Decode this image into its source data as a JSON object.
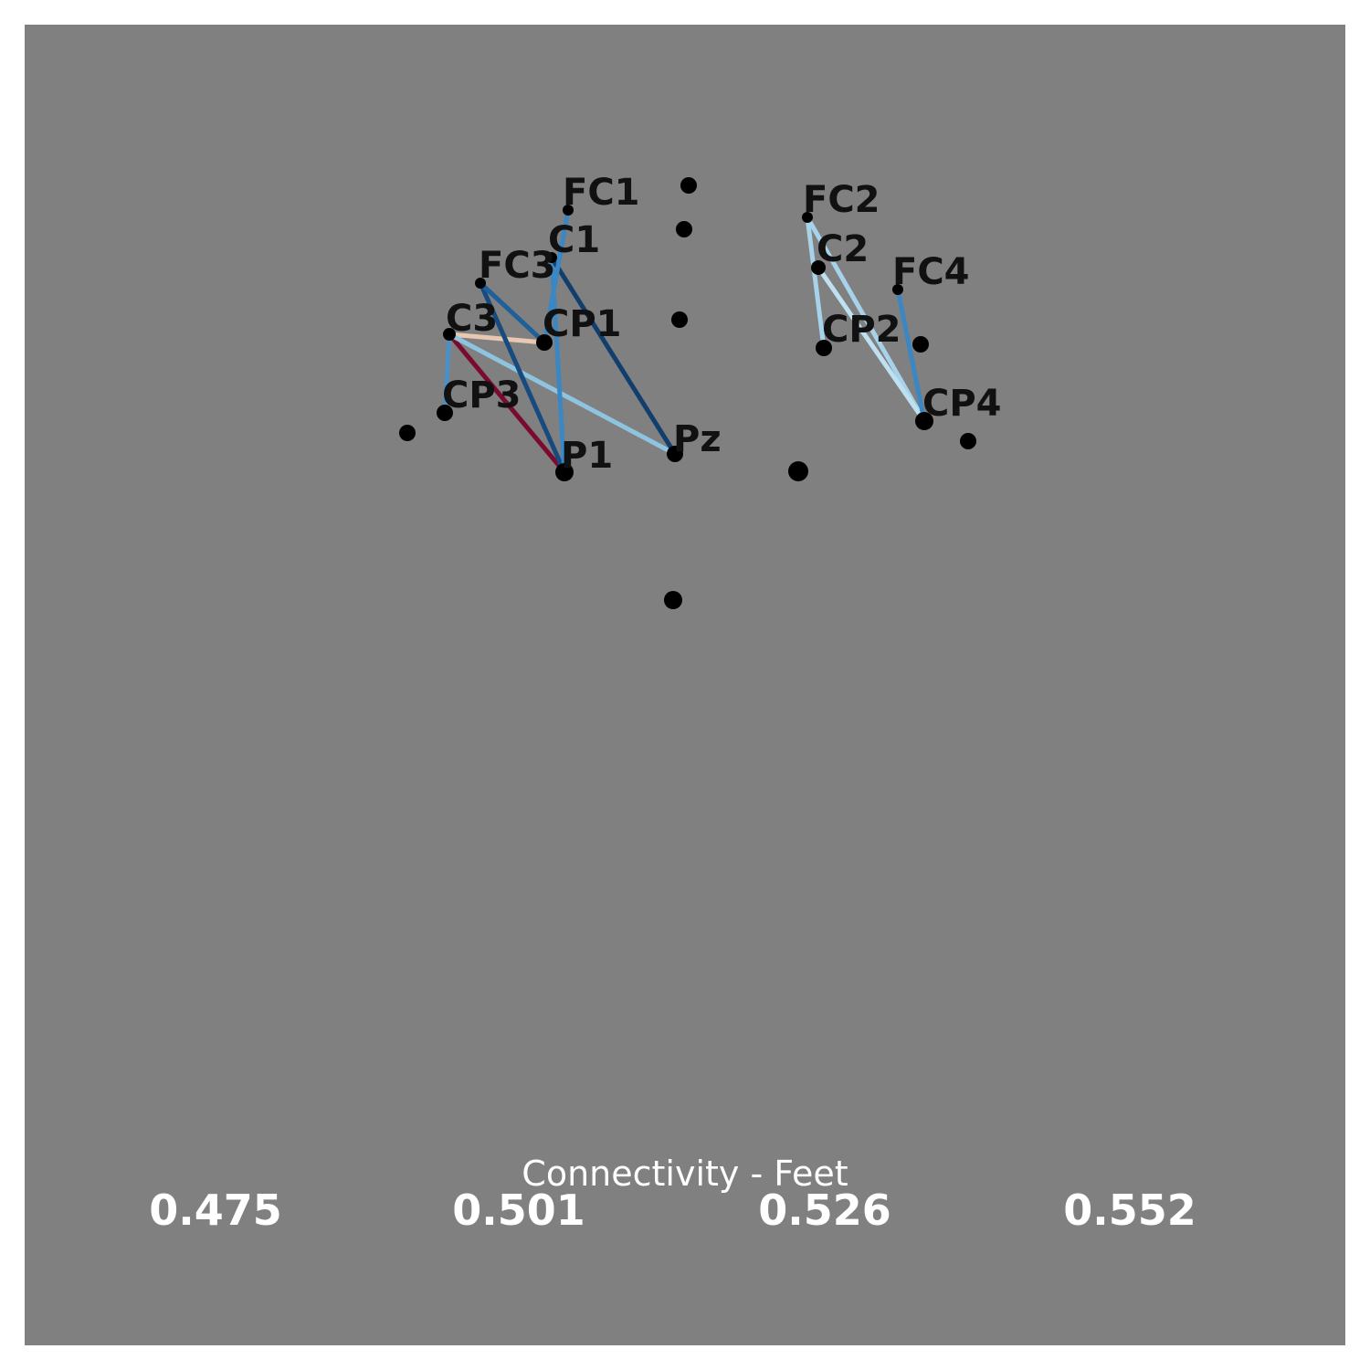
{
  "colors": {
    "page_background": "#ffffff",
    "panel_background": "#808080",
    "sensor_marker": "#000000",
    "label_text": "#111111",
    "scale_text": "#ffffff"
  },
  "sensors": [
    {
      "label": "FC1"
    },
    {
      "label": "C1"
    },
    {
      "label": "FC3"
    },
    {
      "label": "C3"
    },
    {
      "label": "CP1"
    },
    {
      "label": "CP3"
    },
    {
      "label": "P1"
    },
    {
      "label": "Pz"
    },
    {
      "label": "FC2"
    },
    {
      "label": "C2"
    },
    {
      "label": "FC4"
    },
    {
      "label": "CP2"
    },
    {
      "label": "CP4"
    },
    {
      "label": ""
    },
    {
      "label": ""
    },
    {
      "label": ""
    },
    {
      "label": ""
    },
    {
      "label": ""
    },
    {
      "label": ""
    },
    {
      "label": ""
    },
    {
      "label": ""
    }
  ],
  "connections": [
    {
      "from": "C3",
      "to": "P1",
      "color": "#7a0b2e"
    },
    {
      "from": "C3",
      "to": "CP1",
      "color": "#e8c8b0"
    },
    {
      "from": "C3",
      "to": "Pz",
      "color": "#8ec4e0"
    },
    {
      "from": "C3",
      "to": "CP3",
      "color": "#4a90c4"
    },
    {
      "from": "FC3",
      "to": "P1",
      "color": "#174a7e"
    },
    {
      "from": "FC3",
      "to": "CP1",
      "color": "#1f5f9a"
    },
    {
      "from": "C1",
      "to": "P1",
      "color": "#3a87c4"
    },
    {
      "from": "C1",
      "to": "Pz",
      "color": "#123e6e"
    },
    {
      "from": "FC1",
      "to": "CP1",
      "color": "#3a87c4"
    },
    {
      "from": "FC2",
      "to": "CP2",
      "color": "#a6d2ea"
    },
    {
      "from": "FC2",
      "to": "CP4",
      "color": "#a6d2ea"
    },
    {
      "from": "C2",
      "to": "CP4",
      "color": "#bfe0f1"
    },
    {
      "from": "FC4",
      "to": "CP4",
      "color": "#3a87c4"
    }
  ],
  "scale": {
    "title": "Connectivity - Feet",
    "ticks": [
      "0.475",
      "0.501",
      "0.526",
      "0.552"
    ]
  }
}
